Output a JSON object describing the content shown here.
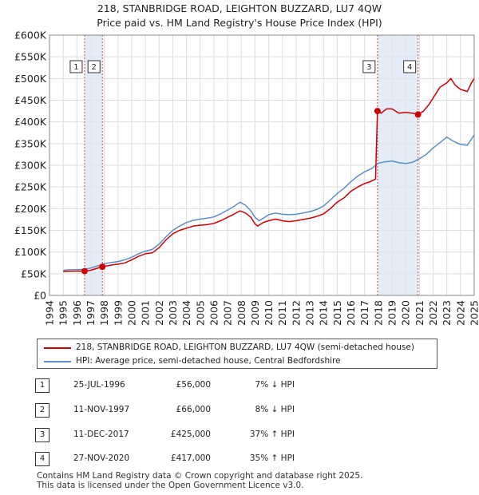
{
  "title_line1": "218, STANBRIDGE ROAD, LEIGHTON BUZZARD, LU7 4QW",
  "title_line2": "Price paid vs. HM Land Registry's House Price Index (HPI)",
  "chart_data": {
    "type": "line",
    "title": "218, STANBRIDGE ROAD, LEIGHTON BUZZARD, LU7 4QW — Price paid vs. HM Land Registry's House Price Index (HPI)",
    "xlabel": "",
    "ylabel": "",
    "xlim": [
      1994,
      2025
    ],
    "ylim": [
      0,
      600000
    ],
    "y_ticks": [
      {
        "value": 0,
        "label": "£0"
      },
      {
        "value": 50000,
        "label": "£50K"
      },
      {
        "value": 100000,
        "label": "£100K"
      },
      {
        "value": 150000,
        "label": "£150K"
      },
      {
        "value": 200000,
        "label": "£200K"
      },
      {
        "value": 250000,
        "label": "£250K"
      },
      {
        "value": 300000,
        "label": "£300K"
      },
      {
        "value": 350000,
        "label": "£350K"
      },
      {
        "value": 400000,
        "label": "£400K"
      },
      {
        "value": 450000,
        "label": "£450K"
      },
      {
        "value": 500000,
        "label": "£500K"
      },
      {
        "value": 550000,
        "label": "£550K"
      },
      {
        "value": 600000,
        "label": "£600K"
      }
    ],
    "x_ticks": [
      "1994",
      "1995",
      "1996",
      "1997",
      "1998",
      "1999",
      "2000",
      "2001",
      "2002",
      "2003",
      "2004",
      "2005",
      "2006",
      "2007",
      "2008",
      "2009",
      "2010",
      "2011",
      "2012",
      "2013",
      "2014",
      "2015",
      "2016",
      "2017",
      "2018",
      "2019",
      "2020",
      "2021",
      "2022",
      "2023",
      "2024",
      "2025"
    ],
    "grid": true,
    "legend_position": "below",
    "series": [
      {
        "name": "218, STANBRIDGE ROAD, LEIGHTON BUZZARD, LU7 4QW (semi-detached house)",
        "color": "#cc0000",
        "points": [
          [
            1995.0,
            55000
          ],
          [
            1995.5,
            55500
          ],
          [
            1996.0,
            56000
          ],
          [
            1996.56,
            56000
          ],
          [
            1997.0,
            58000
          ],
          [
            1997.86,
            66000
          ],
          [
            1998.5,
            70000
          ],
          [
            1999.0,
            72000
          ],
          [
            1999.5,
            75000
          ],
          [
            2000.0,
            82000
          ],
          [
            2000.5,
            90000
          ],
          [
            2001.0,
            96000
          ],
          [
            2001.5,
            98000
          ],
          [
            2002.0,
            110000
          ],
          [
            2002.5,
            128000
          ],
          [
            2003.0,
            142000
          ],
          [
            2003.5,
            150000
          ],
          [
            2004.0,
            155000
          ],
          [
            2004.5,
            160000
          ],
          [
            2005.0,
            162000
          ],
          [
            2005.5,
            163000
          ],
          [
            2006.0,
            166000
          ],
          [
            2006.5,
            172000
          ],
          [
            2007.0,
            180000
          ],
          [
            2007.5,
            188000
          ],
          [
            2007.9,
            195000
          ],
          [
            2008.3,
            190000
          ],
          [
            2008.7,
            180000
          ],
          [
            2009.0,
            165000
          ],
          [
            2009.2,
            160000
          ],
          [
            2009.6,
            168000
          ],
          [
            2010.0,
            172000
          ],
          [
            2010.5,
            176000
          ],
          [
            2011.0,
            172000
          ],
          [
            2011.5,
            170000
          ],
          [
            2012.0,
            172000
          ],
          [
            2012.5,
            175000
          ],
          [
            2013.0,
            178000
          ],
          [
            2013.5,
            182000
          ],
          [
            2014.0,
            188000
          ],
          [
            2014.5,
            200000
          ],
          [
            2015.0,
            215000
          ],
          [
            2015.5,
            225000
          ],
          [
            2016.0,
            240000
          ],
          [
            2016.5,
            250000
          ],
          [
            2017.0,
            258000
          ],
          [
            2017.4,
            262000
          ],
          [
            2017.8,
            268000
          ],
          [
            2017.94,
            425000
          ],
          [
            2018.2,
            420000
          ],
          [
            2018.6,
            430000
          ],
          [
            2019.0,
            430000
          ],
          [
            2019.5,
            420000
          ],
          [
            2020.0,
            422000
          ],
          [
            2020.5,
            420000
          ],
          [
            2020.9,
            417000
          ],
          [
            2021.3,
            425000
          ],
          [
            2021.7,
            440000
          ],
          [
            2022.0,
            455000
          ],
          [
            2022.5,
            480000
          ],
          [
            2023.0,
            490000
          ],
          [
            2023.3,
            500000
          ],
          [
            2023.6,
            485000
          ],
          [
            2024.0,
            475000
          ],
          [
            2024.5,
            470000
          ],
          [
            2024.8,
            490000
          ],
          [
            2025.0,
            500000
          ]
        ]
      },
      {
        "name": "HPI: Average price, semi-detached house, Central Bedfordshire",
        "color": "#5b8ec9",
        "points": [
          [
            1995.0,
            58000
          ],
          [
            1995.5,
            59000
          ],
          [
            1996.0,
            59500
          ],
          [
            1996.5,
            60000
          ],
          [
            1997.0,
            63000
          ],
          [
            1997.5,
            68000
          ],
          [
            1998.0,
            73000
          ],
          [
            1998.5,
            76000
          ],
          [
            1999.0,
            78000
          ],
          [
            1999.5,
            82000
          ],
          [
            2000.0,
            88000
          ],
          [
            2000.5,
            96000
          ],
          [
            2001.0,
            102000
          ],
          [
            2001.5,
            106000
          ],
          [
            2002.0,
            118000
          ],
          [
            2002.5,
            135000
          ],
          [
            2003.0,
            150000
          ],
          [
            2003.5,
            160000
          ],
          [
            2004.0,
            168000
          ],
          [
            2004.5,
            173000
          ],
          [
            2005.0,
            176000
          ],
          [
            2005.5,
            178000
          ],
          [
            2006.0,
            181000
          ],
          [
            2006.5,
            188000
          ],
          [
            2007.0,
            197000
          ],
          [
            2007.5,
            206000
          ],
          [
            2007.9,
            215000
          ],
          [
            2008.3,
            208000
          ],
          [
            2008.7,
            195000
          ],
          [
            2009.0,
            180000
          ],
          [
            2009.3,
            172000
          ],
          [
            2009.7,
            180000
          ],
          [
            2010.0,
            186000
          ],
          [
            2010.5,
            190000
          ],
          [
            2011.0,
            187000
          ],
          [
            2011.5,
            186000
          ],
          [
            2012.0,
            187000
          ],
          [
            2012.5,
            190000
          ],
          [
            2013.0,
            193000
          ],
          [
            2013.5,
            198000
          ],
          [
            2014.0,
            206000
          ],
          [
            2014.5,
            220000
          ],
          [
            2015.0,
            235000
          ],
          [
            2015.5,
            247000
          ],
          [
            2016.0,
            262000
          ],
          [
            2016.5,
            275000
          ],
          [
            2017.0,
            285000
          ],
          [
            2017.5,
            292000
          ],
          [
            2018.0,
            305000
          ],
          [
            2018.5,
            308000
          ],
          [
            2019.0,
            310000
          ],
          [
            2019.5,
            306000
          ],
          [
            2020.0,
            304000
          ],
          [
            2020.5,
            307000
          ],
          [
            2021.0,
            315000
          ],
          [
            2021.5,
            325000
          ],
          [
            2022.0,
            340000
          ],
          [
            2022.5,
            352000
          ],
          [
            2023.0,
            365000
          ],
          [
            2023.5,
            355000
          ],
          [
            2024.0,
            348000
          ],
          [
            2024.5,
            346000
          ],
          [
            2025.0,
            370000
          ]
        ]
      }
    ],
    "sales": [
      {
        "num": "1",
        "x": 1996.56,
        "price": 56000
      },
      {
        "num": "2",
        "x": 1997.86,
        "price": 66000
      },
      {
        "num": "3",
        "x": 2017.94,
        "price": 425000
      },
      {
        "num": "4",
        "x": 2020.9,
        "price": 417000
      }
    ],
    "shaded_ranges": [
      [
        1996.56,
        1997.86
      ],
      [
        2017.94,
        2020.9
      ]
    ]
  },
  "legend": {
    "red_label": "218, STANBRIDGE ROAD, LEIGHTON BUZZARD, LU7 4QW (semi-detached house)",
    "blue_label": "HPI: Average price, semi-detached house, Central Bedfordshire",
    "red_color": "#cc0000",
    "blue_color": "#5b8ec9"
  },
  "sales_table": [
    {
      "num": "1",
      "date": "25-JUL-1996",
      "price": "£56,000",
      "hpi": "7% ↓ HPI"
    },
    {
      "num": "2",
      "date": "11-NOV-1997",
      "price": "£66,000",
      "hpi": "8% ↓ HPI"
    },
    {
      "num": "3",
      "date": "11-DEC-2017",
      "price": "£425,000",
      "hpi": "37% ↑ HPI"
    },
    {
      "num": "4",
      "date": "27-NOV-2020",
      "price": "£417,000",
      "hpi": "35% ↑ HPI"
    }
  ],
  "footer_line1": "Contains HM Land Registry data © Crown copyright and database right 2025.",
  "footer_line2": "This data is licensed under the Open Government Licence v3.0."
}
